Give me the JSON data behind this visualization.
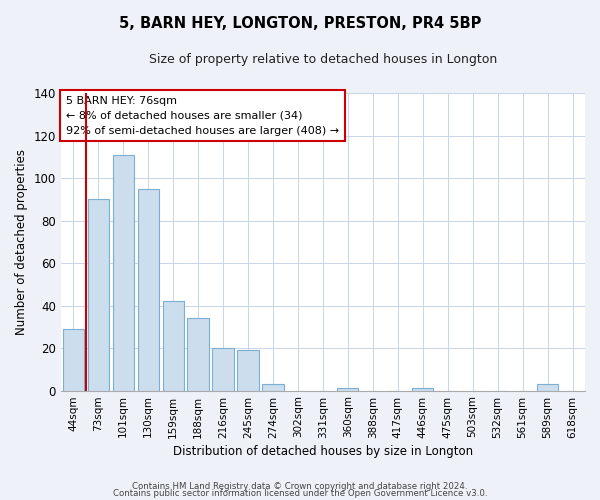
{
  "title": "5, BARN HEY, LONGTON, PRESTON, PR4 5BP",
  "subtitle": "Size of property relative to detached houses in Longton",
  "xlabel": "Distribution of detached houses by size in Longton",
  "ylabel": "Number of detached properties",
  "bar_labels": [
    "44sqm",
    "73sqm",
    "101sqm",
    "130sqm",
    "159sqm",
    "188sqm",
    "216sqm",
    "245sqm",
    "274sqm",
    "302sqm",
    "331sqm",
    "360sqm",
    "388sqm",
    "417sqm",
    "446sqm",
    "475sqm",
    "503sqm",
    "532sqm",
    "561sqm",
    "589sqm",
    "618sqm"
  ],
  "bar_values": [
    29,
    90,
    111,
    95,
    42,
    34,
    20,
    19,
    3,
    0,
    0,
    1,
    0,
    0,
    1,
    0,
    0,
    0,
    0,
    3,
    0
  ],
  "bar_color": "#ccdded",
  "bar_edge_color": "#7bafd4",
  "ylim": [
    0,
    140
  ],
  "yticks": [
    0,
    20,
    40,
    60,
    80,
    100,
    120,
    140
  ],
  "vline_x": 0.5,
  "vline_color": "#cc0000",
  "annotation_title": "5 BARN HEY: 76sqm",
  "annotation_line1": "← 8% of detached houses are smaller (34)",
  "annotation_line2": "92% of semi-detached houses are larger (408) →",
  "annotation_box_color": "#ffffff",
  "annotation_box_edge": "#cc0000",
  "footer_line1": "Contains HM Land Registry data © Crown copyright and database right 2024.",
  "footer_line2": "Contains public sector information licensed under the Open Government Licence v3.0.",
  "background_color": "#eef2f8",
  "plot_background": "#ffffff",
  "grid_color": "#c8d4e8"
}
